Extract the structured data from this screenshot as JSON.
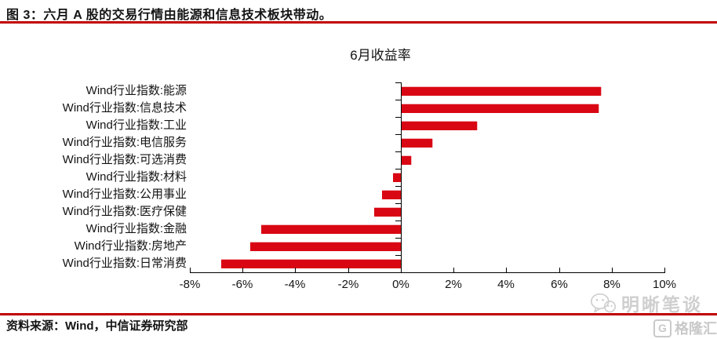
{
  "figure": {
    "title": "图 3：六月 A 股的交易行情由能源和信息技术板块带动。",
    "source": "资料来源：Wind，中信证券研究部"
  },
  "watermark": {
    "wechat_account": "明晰笔谈",
    "logo_text": "格隆汇",
    "logo_letter": "G"
  },
  "colors": {
    "bar": "#d90713",
    "bar_edge": "#f3b6bb",
    "accent_rule": "#c00000",
    "axis": "#000000",
    "watermark": "#cfcfcf"
  },
  "chart_data": {
    "type": "bar",
    "orientation": "horizontal",
    "title": "6月收益率",
    "categories": [
      "Wind行业指数:能源",
      "Wind行业指数:信息技术",
      "Wind行业指数:工业",
      "Wind行业指数:电信服务",
      "Wind行业指数:可选消费",
      "Wind行业指数:材料",
      "Wind行业指数:公用事业",
      "Wind行业指数:医疗保健",
      "Wind行业指数:金融",
      "Wind行业指数:房地产",
      "Wind行业指数:日常消费"
    ],
    "values": [
      7.6,
      7.5,
      2.9,
      1.2,
      0.4,
      -0.3,
      -0.7,
      -1.0,
      -5.3,
      -5.7,
      -6.8
    ],
    "unit": "%",
    "xlim": [
      -8,
      10
    ],
    "xticks": [
      -8,
      -6,
      -4,
      -2,
      0,
      2,
      4,
      6,
      8,
      10
    ],
    "xtick_labels": [
      "-8%",
      "-6%",
      "-4%",
      "-2%",
      "0%",
      "2%",
      "4%",
      "6%",
      "8%",
      "10%"
    ],
    "grid": false,
    "legend": null
  }
}
